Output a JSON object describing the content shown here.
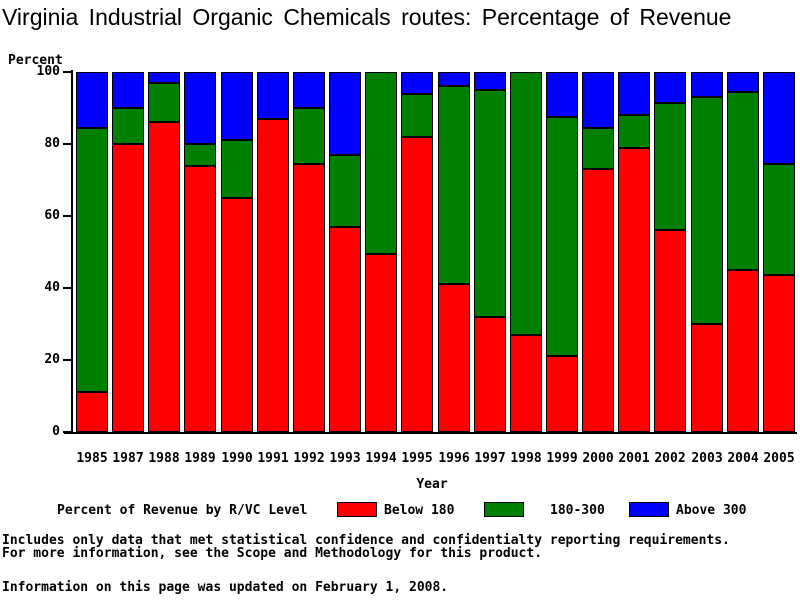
{
  "chart_data": {
    "type": "bar",
    "stacked": true,
    "title": "Virginia Industrial Organic Chemicals routes: Percentage of Revenue",
    "xlabel": "Year",
    "ylabel": "Percent",
    "ylim": [
      0,
      100
    ],
    "yticks": [
      0,
      20,
      40,
      60,
      80,
      100
    ],
    "grid": false,
    "legend_position": "bottom",
    "categories": [
      "1985",
      "1987",
      "1988",
      "1989",
      "1990",
      "1991",
      "1992",
      "1993",
      "1994",
      "1995",
      "1996",
      "1997",
      "1998",
      "1999",
      "2000",
      "2001",
      "2002",
      "2003",
      "2004",
      "2005"
    ],
    "series": [
      {
        "name": "Below 180",
        "color": "#ff0000",
        "values": [
          11,
          80,
          86,
          74,
          65,
          87,
          74.5,
          57,
          49.5,
          82,
          41,
          32,
          27,
          21,
          73,
          79,
          56,
          30,
          45,
          43.5
        ]
      },
      {
        "name": "180-300",
        "color": "#008000",
        "values": [
          73.5,
          10,
          11,
          6,
          16,
          0,
          15.5,
          20,
          50.5,
          12,
          55,
          63,
          73,
          66.5,
          11.5,
          9,
          35.5,
          63,
          49.5,
          31
        ]
      },
      {
        "name": "Above 300",
        "color": "#0000ff",
        "values": [
          15.5,
          10,
          3,
          20,
          19,
          13,
          10,
          23,
          0,
          6,
          4,
          5,
          0,
          12.5,
          15.5,
          12,
          8.5,
          7,
          5.5,
          25.5
        ]
      }
    ]
  },
  "legend": {
    "label": "Percent of Revenue by R/VC Level",
    "entries": [
      "Below 180",
      "180-300",
      "Above 300"
    ]
  },
  "footer": {
    "note1": "Includes only data that met statistical confidence and confidentialty reporting requirements.",
    "note2": "For more information, see the Scope and Methodology for this product.",
    "updated": "Information on this page was updated on February 1, 2008."
  },
  "colors": {
    "below_180": "#ff0000",
    "range_180_300": "#008000",
    "above_300": "#0000ff",
    "axis": "#000000",
    "background": "#ffffff"
  }
}
